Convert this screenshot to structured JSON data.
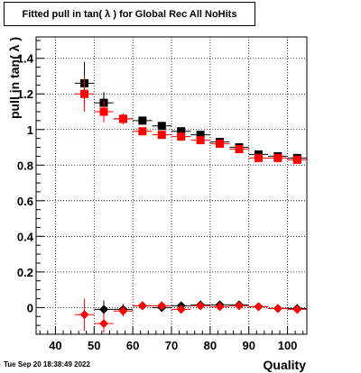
{
  "title": "Fitted pull in tan( λ ) for Global Rec All NoHits",
  "timestamp": "Tue Sep 20 18:38:49 2022",
  "chart_data": {
    "type": "scatter",
    "xlabel": "Quality",
    "ylabel": "pull in tan( λ )",
    "xlim": [
      35,
      105
    ],
    "ylim": [
      -0.15,
      1.52
    ],
    "x_ticks": [
      40,
      50,
      60,
      70,
      80,
      90,
      100
    ],
    "y_ticks": [
      0,
      0.2,
      0.4,
      0.6,
      0.8,
      1,
      1.2,
      1.4
    ],
    "y_tick_labels": [
      "0",
      "0.2",
      "0.4",
      "0.6",
      "0.8",
      "1",
      "1.2",
      "1.4"
    ],
    "grid": true,
    "x_error": 2.5,
    "series": [
      {
        "color": "#000000",
        "marker": "square",
        "x": [
          47.5,
          52.5,
          57.5,
          62.5,
          67.5,
          72.5,
          77.5,
          82.5,
          87.5,
          92.5,
          97.5,
          102.5
        ],
        "y": [
          1.26,
          1.15,
          1.06,
          1.05,
          1.02,
          0.99,
          0.97,
          0.93,
          0.9,
          0.86,
          0.85,
          0.84
        ],
        "yerr": [
          0.12,
          0.06,
          0.03,
          0.02,
          0.015,
          0.015,
          0.015,
          0.015,
          0.015,
          0.015,
          0.015,
          0.015
        ]
      },
      {
        "color": "#ff0000",
        "marker": "square",
        "x": [
          47.5,
          52.5,
          57.5,
          62.5,
          67.5,
          72.5,
          77.5,
          82.5,
          87.5,
          92.5,
          97.5,
          102.5
        ],
        "y": [
          1.2,
          1.1,
          1.06,
          0.99,
          0.97,
          0.96,
          0.94,
          0.92,
          0.89,
          0.84,
          0.84,
          0.83
        ],
        "yerr": [
          0.1,
          0.06,
          0.03,
          0.02,
          0.015,
          0.015,
          0.015,
          0.015,
          0.015,
          0.015,
          0.015,
          0.015
        ]
      },
      {
        "color": "#000000",
        "marker": "diamond",
        "x": [
          52.5,
          57.5,
          62.5,
          67.5,
          72.5,
          77.5,
          82.5,
          87.5,
          92.5,
          97.5,
          102.5
        ],
        "y": [
          -0.01,
          -0.01,
          0.01,
          0.0,
          0.01,
          0.015,
          0.015,
          0.015,
          0.005,
          -0.005,
          -0.005
        ],
        "yerr": [
          0.05,
          0.03,
          0.02,
          0.015,
          0.01,
          0.01,
          0.01,
          0.01,
          0.01,
          0.01,
          0.01
        ]
      },
      {
        "color": "#ff0000",
        "marker": "diamond",
        "x": [
          47.5,
          52.5,
          57.5,
          62.5,
          67.5,
          72.5,
          77.5,
          82.5,
          87.5,
          92.5,
          97.5,
          102.5
        ],
        "y": [
          -0.04,
          -0.09,
          -0.02,
          0.01,
          0.01,
          -0.01,
          0.01,
          0.005,
          0.01,
          0.005,
          -0.005,
          -0.01
        ],
        "yerr": [
          0.09,
          0.05,
          0.03,
          0.02,
          0.015,
          0.01,
          0.01,
          0.01,
          0.01,
          0.01,
          0.01,
          0.01
        ]
      }
    ]
  }
}
